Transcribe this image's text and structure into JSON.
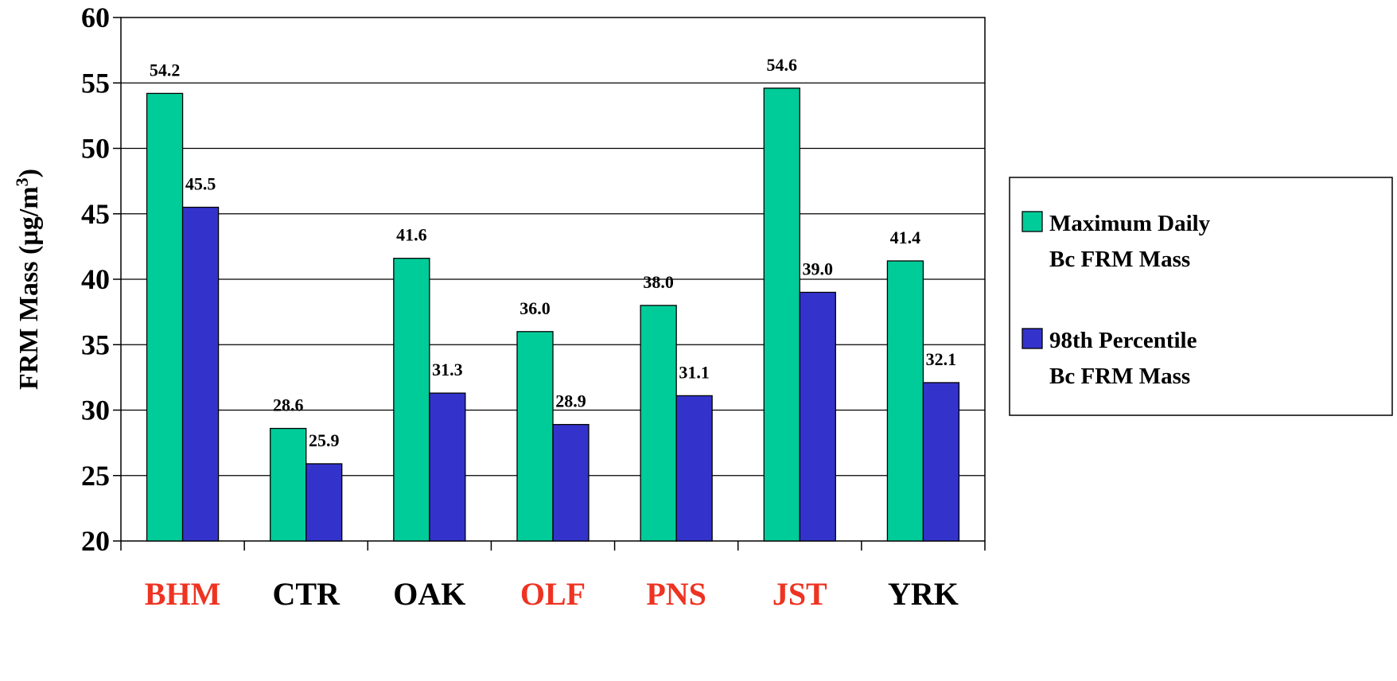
{
  "chart_data": {
    "type": "bar",
    "categories": [
      "BHM",
      "CTR",
      "OAK",
      "OLF",
      "PNS",
      "JST",
      "YRK"
    ],
    "category_colors": [
      "#ee3322",
      "#000000",
      "#000000",
      "#ee3322",
      "#ee3322",
      "#ee3322",
      "#000000"
    ],
    "series": [
      {
        "name": "Maximum Daily Bc FRM Mass",
        "legend_lines": [
          "Maximum Daily",
          "Bc FRM Mass"
        ],
        "color": "#00cc99",
        "values": [
          54.2,
          28.6,
          41.6,
          36.0,
          38.0,
          54.6,
          41.4
        ],
        "labels": [
          "54.2",
          "28.6",
          "41.6",
          "36.0",
          "38.0",
          "54.6",
          "41.4"
        ]
      },
      {
        "name": "98th Percentile Bc FRM Mass",
        "legend_lines": [
          "98th Percentile",
          "Bc FRM Mass"
        ],
        "color": "#3333cc",
        "values": [
          45.5,
          25.9,
          31.3,
          28.9,
          31.1,
          39.0,
          32.1
        ],
        "labels": [
          "45.5",
          "25.9",
          "31.3",
          "28.9",
          "31.1",
          "39.0",
          "32.1"
        ]
      }
    ],
    "ylabel_main": "FRM Mass (µg/m",
    "ylabel_sup": "3",
    "ylabel_end": ")",
    "ylim": [
      20,
      60
    ],
    "yticks": [
      20,
      25,
      30,
      35,
      40,
      45,
      50,
      55,
      60
    ],
    "grid": true,
    "legend_position": "right"
  }
}
